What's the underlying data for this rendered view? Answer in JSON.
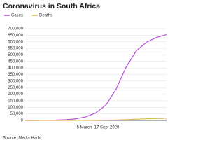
{
  "chart_data": {
    "type": "line",
    "title": "Coronavirus in South Africa",
    "xlabel": "5 March–17 Sept 2020",
    "source": "Source: Media Hack",
    "categories": [
      null,
      null,
      null,
      null,
      null,
      null,
      null,
      null,
      null,
      null,
      null,
      null,
      null,
      null,
      null
    ],
    "series": [
      {
        "name": "Cases",
        "color": "#b44fd8",
        "values": [
          1,
          150,
          1500,
          2600,
          5600,
          12000,
          27000,
          58000,
          118000,
          238000,
          408000,
          530000,
          596000,
          633000,
          655000
        ]
      },
      {
        "name": "Deaths",
        "color": "#e0b84a",
        "values": [
          0,
          0,
          5,
          50,
          100,
          220,
          580,
          1200,
          2300,
          3700,
          6100,
          9600,
          12300,
          14300,
          15900
        ]
      }
    ],
    "ylim": [
      0,
      700000
    ],
    "yticks": [
      0,
      {
        "value": 50000,
        "label": "50,000"
      },
      {
        "value": 100000,
        "label": "100,000"
      },
      {
        "value": 150000,
        "label": "150,000"
      },
      {
        "value": 200000,
        "label": "200,000"
      },
      {
        "value": 250000,
        "label": "250,000"
      },
      {
        "value": 300000,
        "label": "300,000"
      },
      {
        "value": 350000,
        "label": "350,000"
      },
      {
        "value": 400000,
        "label": "400,000"
      },
      {
        "value": 450000,
        "label": "450,000"
      },
      {
        "value": 500000,
        "label": "500,000"
      },
      {
        "value": 550000,
        "label": "550,000"
      },
      {
        "value": 600000,
        "label": "600,000"
      },
      {
        "value": 650000,
        "label": "650,000"
      },
      {
        "value": 700000,
        "label": "700,000"
      }
    ],
    "grid": true
  }
}
